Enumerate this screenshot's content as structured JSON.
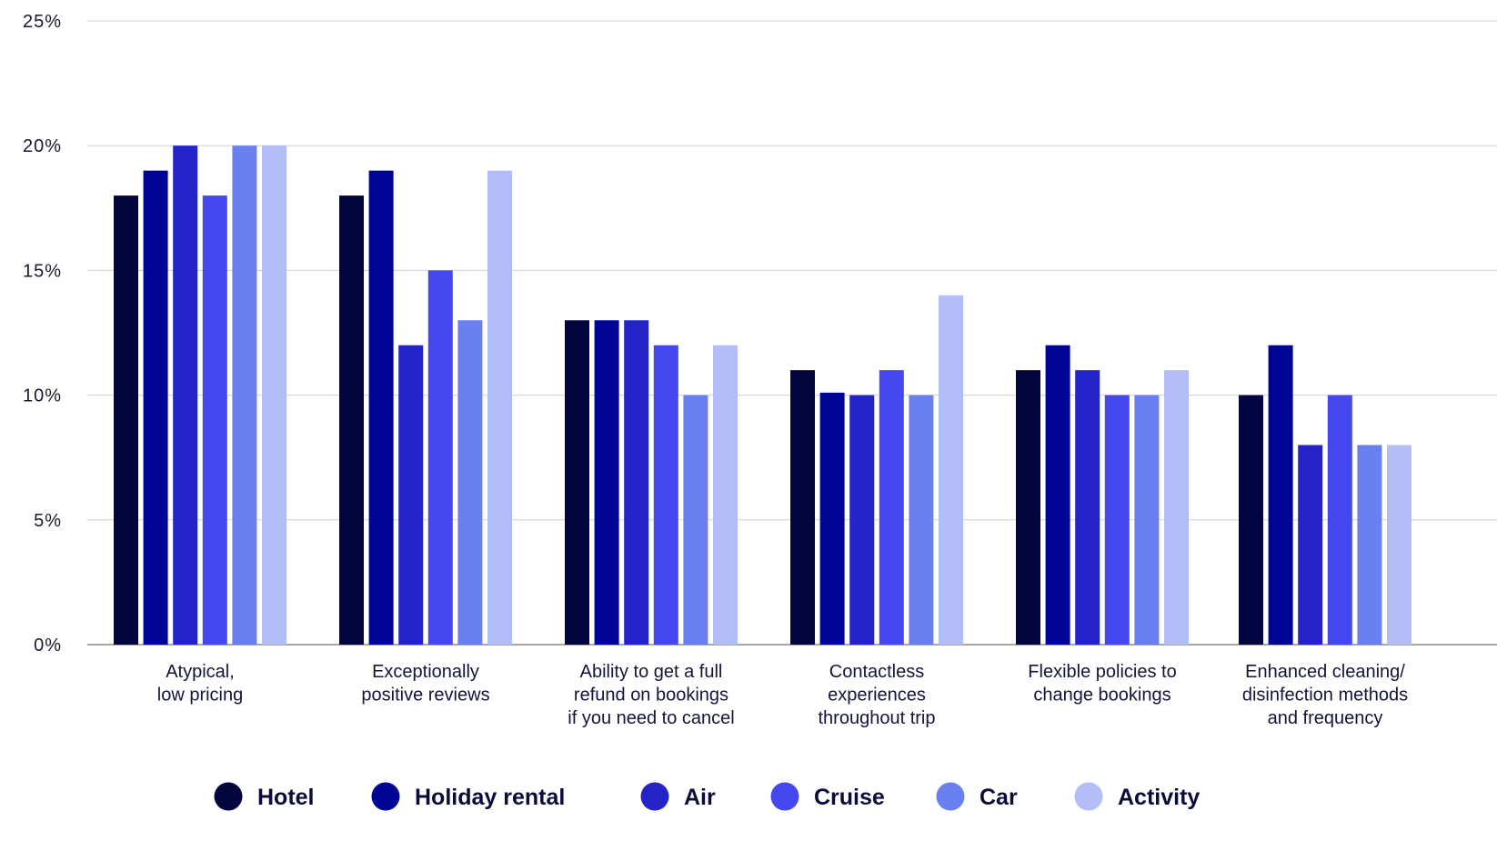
{
  "chart_data": {
    "type": "bar",
    "yaxis": {
      "ylim": [
        0,
        25
      ],
      "ticks": [
        0,
        5,
        10,
        15,
        20,
        25
      ],
      "tick_labels": [
        "0%",
        "5%",
        "10%",
        "15%",
        "20%",
        "25%"
      ]
    },
    "grid": true,
    "legend_position": "bottom",
    "categories": [
      [
        "Atypical,",
        "low pricing"
      ],
      [
        "Exceptionally",
        "positive reviews"
      ],
      [
        "Ability to get a full",
        "refund on bookings",
        "if you need to cancel"
      ],
      [
        "Contactless",
        "experiences",
        "throughout trip"
      ],
      [
        "Flexible policies to",
        "change bookings"
      ],
      [
        "Enhanced cleaning/",
        "disinfection methods",
        "and frequency"
      ]
    ],
    "series": [
      {
        "name": "Hotel",
        "color": "#03053f",
        "values": [
          18,
          18,
          13,
          11,
          11,
          10
        ]
      },
      {
        "name": "Holiday rental",
        "color": "#000596",
        "values": [
          19,
          19,
          13,
          10.1,
          12,
          12
        ]
      },
      {
        "name": "Air",
        "color": "#2323c8",
        "values": [
          20,
          12,
          13,
          10,
          11,
          8
        ]
      },
      {
        "name": "Cruise",
        "color": "#4448ee",
        "values": [
          18,
          15,
          12,
          11,
          10,
          10
        ]
      },
      {
        "name": "Car",
        "color": "#6a80f0",
        "values": [
          20,
          13,
          10,
          10,
          10,
          8
        ]
      },
      {
        "name": "Activity",
        "color": "#b3bdf8",
        "values": [
          20,
          19,
          12,
          14,
          11,
          8
        ]
      }
    ]
  }
}
